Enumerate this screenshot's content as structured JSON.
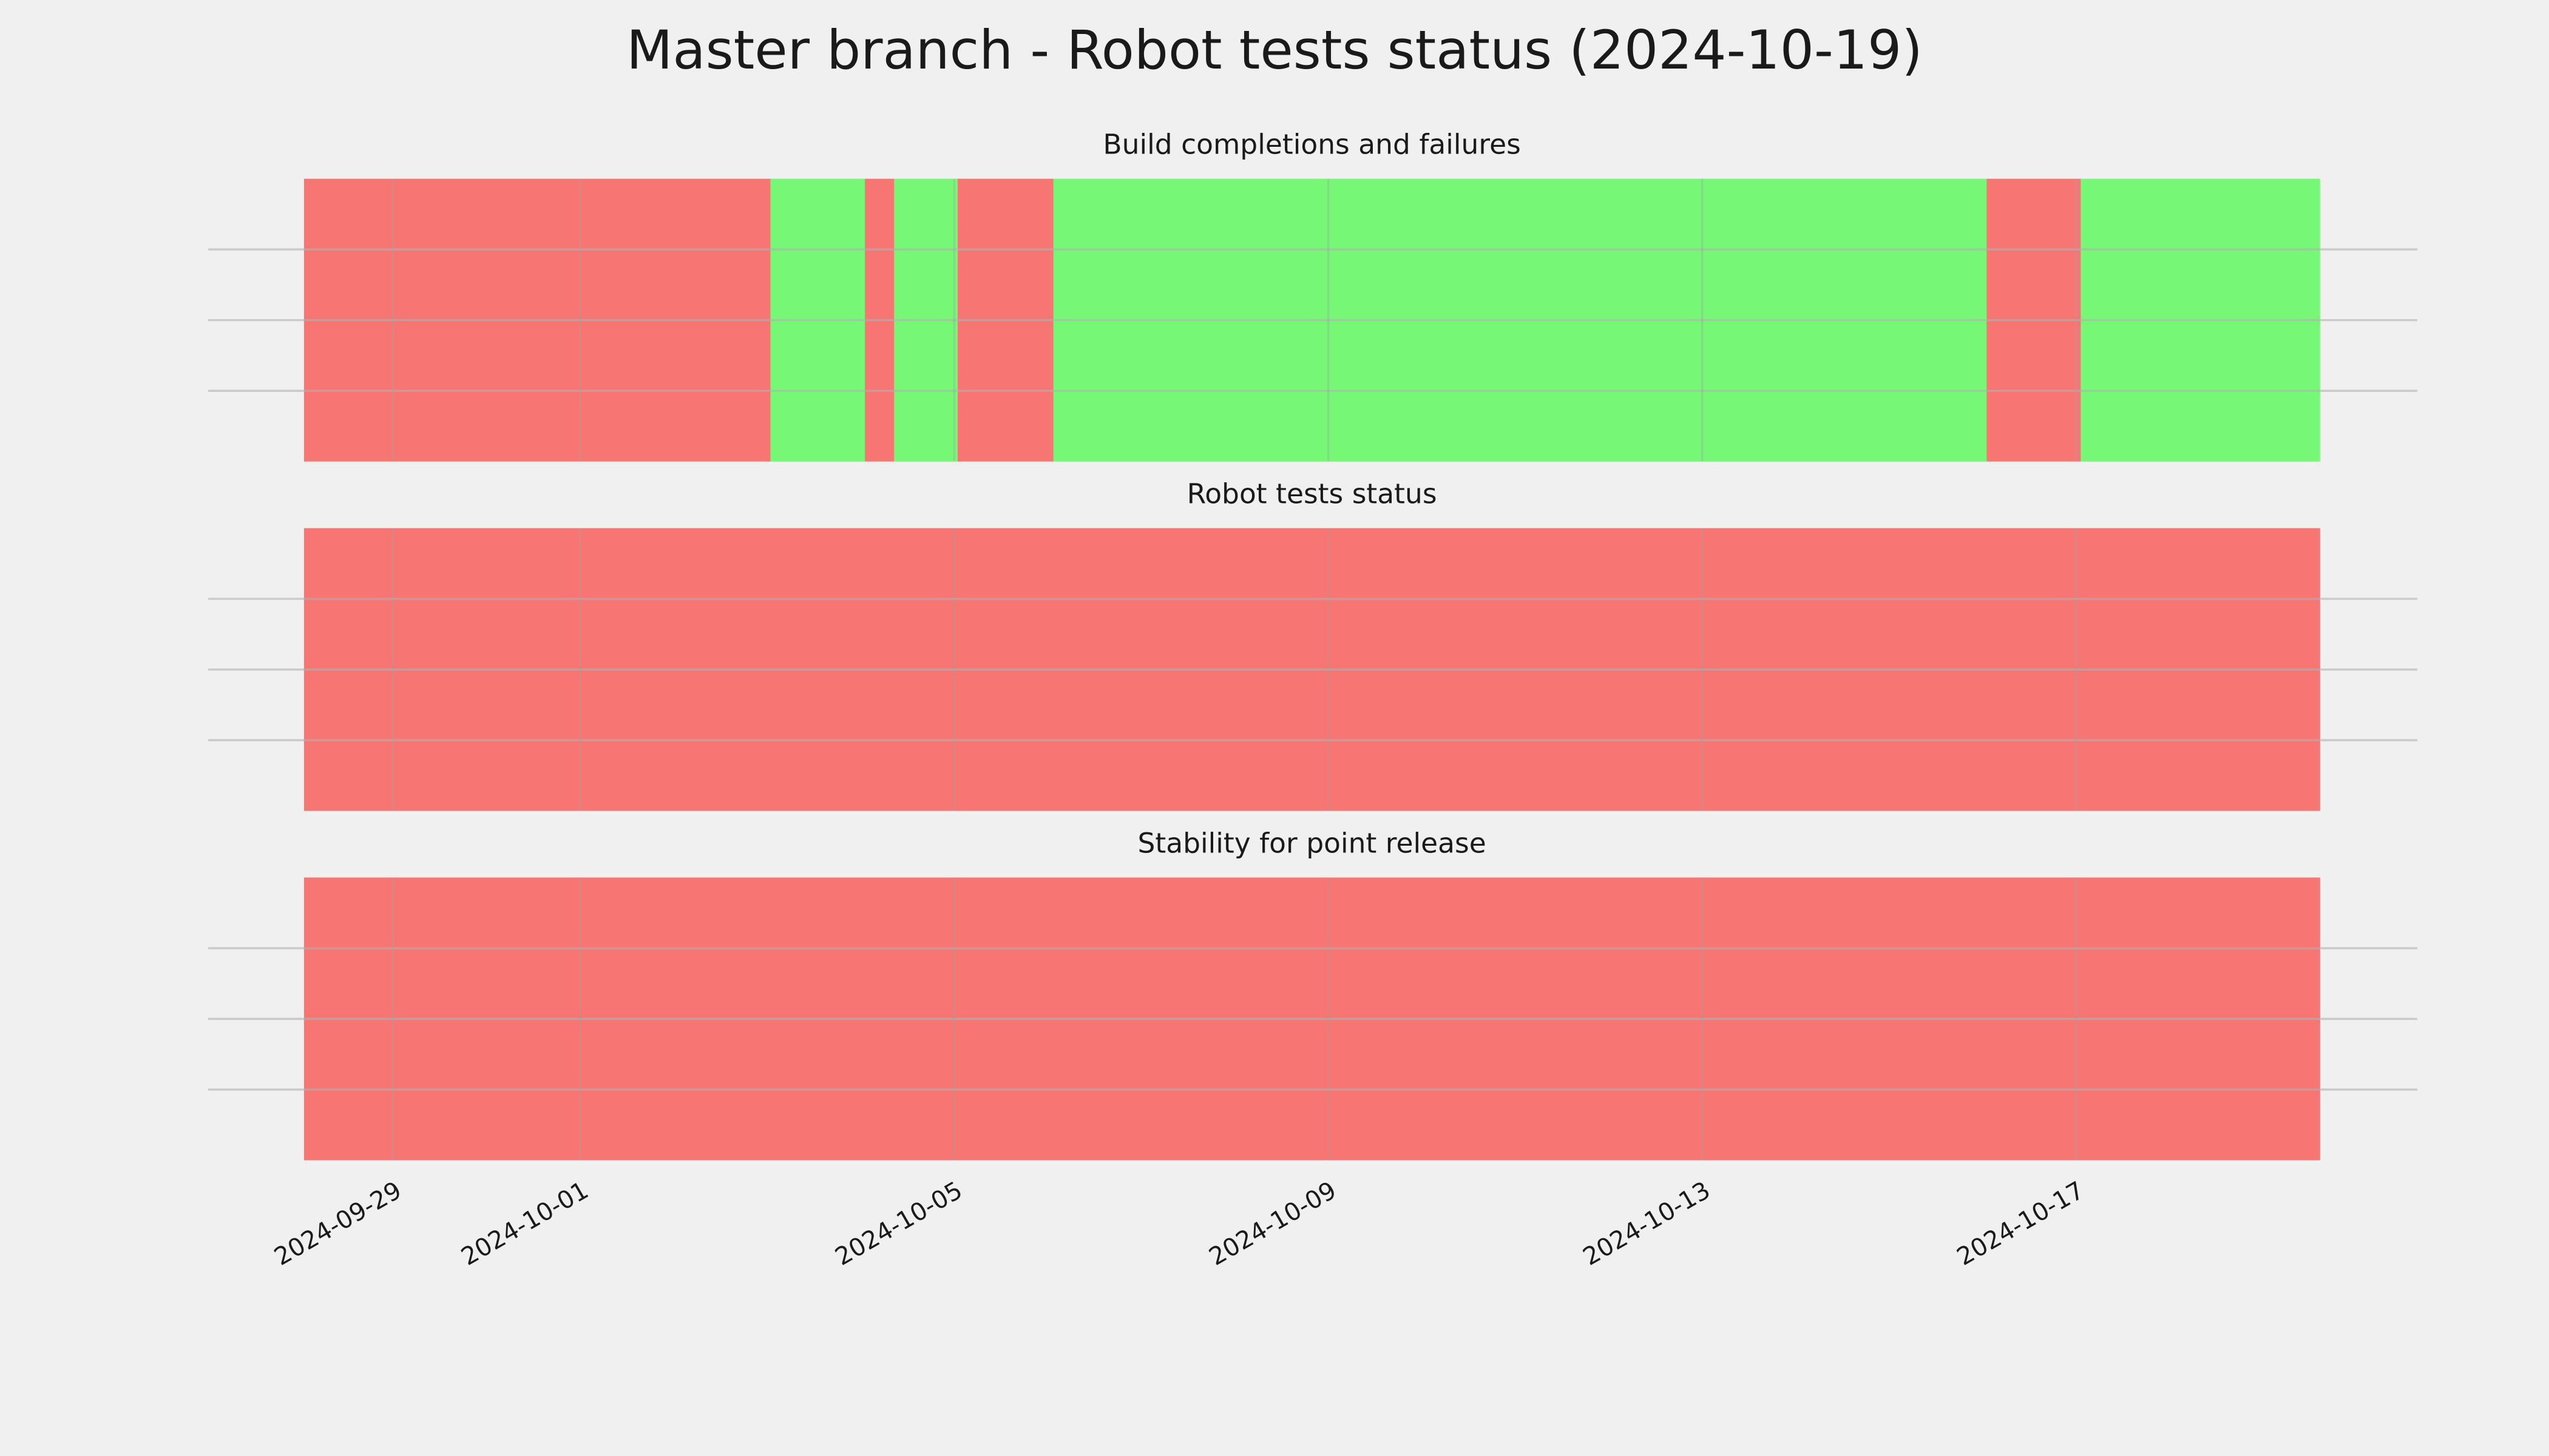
{
  "title": "Master branch - Robot tests status (2024-10-19)",
  "chart_data": [
    {
      "type": "timeline",
      "title": "Build completions and failures",
      "ylim": [
        0,
        1
      ],
      "yticks": [
        0.25,
        0.5,
        0.75
      ],
      "grid": true,
      "spans": [
        {
          "start": "2024-09-28T01:02",
          "end": "2024-10-03T00:50",
          "color": "#f77674"
        },
        {
          "start": "2024-10-03T00:50",
          "end": "2024-10-04T01:02",
          "color": "#76f776"
        },
        {
          "start": "2024-10-04T01:02",
          "end": "2024-10-04T08:34",
          "color": "#f77674"
        },
        {
          "start": "2024-10-04T08:34",
          "end": "2024-10-05T00:50",
          "color": "#76f776"
        },
        {
          "start": "2024-10-05T00:50",
          "end": "2024-10-06T01:28",
          "color": "#f77674"
        },
        {
          "start": "2024-10-06T01:28",
          "end": "2024-10-16T01:00",
          "color": "#76f776"
        },
        {
          "start": "2024-10-16T01:00",
          "end": "2024-10-17T01:12",
          "color": "#f77674"
        },
        {
          "start": "2024-10-17T01:12",
          "end": "2024-10-19T14:38",
          "color": "#76f776"
        }
      ]
    },
    {
      "type": "timeline",
      "title": "Robot tests status",
      "ylim": [
        0,
        1
      ],
      "yticks": [
        0.25,
        0.5,
        0.75
      ],
      "grid": true,
      "spans": [
        {
          "start": "2024-09-28T01:02",
          "end": "2024-10-19T14:38",
          "color": "#f77674"
        }
      ]
    },
    {
      "type": "timeline",
      "title": "Stability for point release",
      "ylim": [
        0,
        1
      ],
      "yticks": [
        0.25,
        0.5,
        0.75
      ],
      "grid": true,
      "xlim": [
        "2024-09-27T00:25",
        "2024-10-20T15:36"
      ],
      "xticks": [
        "2024-09-29",
        "2024-10-01",
        "2024-10-05",
        "2024-10-09",
        "2024-10-13",
        "2024-10-17"
      ],
      "spans": [
        {
          "start": "2024-09-28T01:02",
          "end": "2024-10-19T14:38",
          "color": "#f77674"
        }
      ]
    }
  ]
}
